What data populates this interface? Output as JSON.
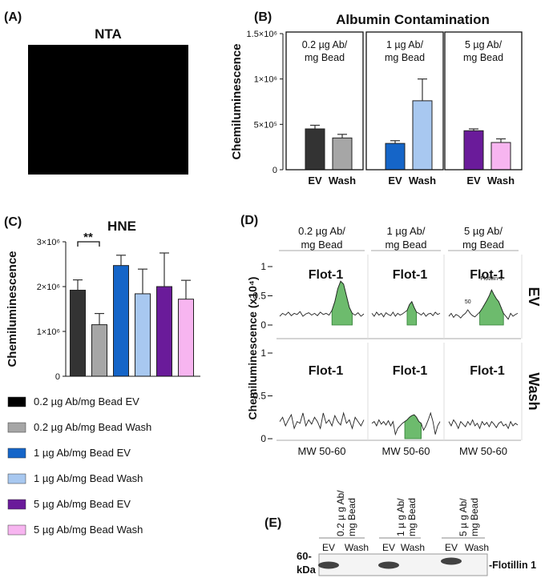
{
  "panel_labels": [
    "(A)",
    "(B)",
    "(C)",
    "(D)",
    "(E)"
  ],
  "nta": {
    "title": "NTA"
  },
  "legend": [
    {
      "name": "0.2 µg Ab/mg Bead EV",
      "color": "#000000"
    },
    {
      "name": "0.2 µg Ab/mg Bead Wash",
      "color": "#a6a6a6"
    },
    {
      "name": "1 µg Ab/mg Bead EV",
      "color": "#1565c8"
    },
    {
      "name": "1 µg Ab/mg Bead Wash",
      "color": "#a8c8f0"
    },
    {
      "name": "5 µg Ab/mg Bead EV",
      "color": "#6a1b9a"
    },
    {
      "name": "5 µg Ab/mg Bead Wash",
      "color": "#f7b5f0"
    }
  ],
  "chart_data": [
    {
      "type": "bar",
      "title": "Albumin Contamination",
      "ylabel": "Chemiluminescence",
      "ylim": [
        0,
        1500000
      ],
      "yticks": [
        0,
        {
          "value": 500000,
          "label": "5×10⁵"
        },
        {
          "value": 1000000,
          "label": "1×10⁶"
        },
        {
          "value": 1500000,
          "label": "1.5×10⁶"
        }
      ],
      "groups": [
        [
          "0.2 µg Ab/",
          "mg Bead"
        ],
        [
          "1 µg Ab/",
          "mg Bead"
        ],
        [
          "5 µg Ab/",
          "mg Bead"
        ]
      ],
      "categories": [
        "EV",
        "Wash",
        "EV",
        "Wash",
        "EV",
        "Wash"
      ],
      "values": [
        450000,
        350000,
        290000,
        760000,
        430000,
        300000
      ],
      "errors": [
        40000,
        40000,
        30000,
        240000,
        20000,
        40000
      ],
      "colors": [
        "#333333",
        "#a6a6a6",
        "#1565c8",
        "#a8c8f0",
        "#6a1b9a",
        "#f7b5f0"
      ]
    },
    {
      "type": "bar",
      "title": "HNE",
      "ylabel": "Chemiluminescence",
      "ylim": [
        0,
        3000000
      ],
      "yticks": [
        0,
        {
          "value": 1000000,
          "label": "1×10⁶"
        },
        {
          "value": 2000000,
          "label": "2×10⁶"
        },
        {
          "value": 3000000,
          "label": "3×10⁶"
        }
      ],
      "categories": [
        null,
        null,
        null,
        null,
        null,
        null
      ],
      "values": [
        1920000,
        1150000,
        2470000,
        1840000,
        2000000,
        1720000
      ],
      "errors": [
        230000,
        250000,
        230000,
        550000,
        750000,
        420000
      ],
      "colors": [
        "#333333",
        "#a6a6a6",
        "#1565c8",
        "#a8c8f0",
        "#6a1b9a",
        "#f7b5f0"
      ],
      "annotation": "**"
    },
    {
      "type": "line",
      "ylabel": "Chemiluminescence (x10⁴)",
      "ylim": [
        0,
        1
      ],
      "yticks": [
        0,
        0.5,
        1
      ],
      "columns": [
        [
          "0.2 µg Ab/",
          "mg Bead"
        ],
        [
          "1 µg Ab/",
          "mg Bead"
        ],
        [
          "5 µg Ab/",
          "mg Bead"
        ]
      ],
      "rows": [
        "EV",
        "Wash"
      ],
      "xlabel": "MW 50-60",
      "peak_label": "Flot-1",
      "color": "#222222",
      "fill_color": "#6dbb6d",
      "panels": [
        [
          {
            "values": [
              0.15,
              0.2,
              0.17,
              0.22,
              0.16,
              0.2,
              0.18,
              0.23,
              0.15,
              0.19,
              0.21,
              0.17,
              0.2,
              0.16,
              0.22,
              0.18,
              0.2,
              0.17,
              0.25,
              0.4,
              0.62,
              0.75,
              0.7,
              0.5,
              0.3,
              0.2,
              0.17,
              0.21,
              0.15,
              0.19
            ],
            "peak_values": [
              null,
              null,
              null,
              null,
              null,
              null,
              null,
              null,
              null,
              null,
              null,
              null,
              null,
              null,
              null,
              null,
              null,
              null,
              0.25,
              0.4,
              0.62,
              0.75,
              0.7,
              0.5,
              0.3,
              0.2,
              null,
              null,
              null,
              null
            ]
          },
          {
            "values": [
              0.2,
              0.15,
              0.22,
              0.17,
              0.2,
              0.14,
              0.21,
              0.18,
              0.16,
              0.22,
              0.15,
              0.2,
              0.17,
              0.19,
              0.22,
              0.25,
              0.35,
              0.4,
              0.3,
              0.22,
              0.2,
              0.17,
              0.21,
              0.15,
              0.19,
              0.2,
              0.16,
              0.22,
              0.18,
              0.2
            ],
            "peak_values": [
              null,
              null,
              null,
              null,
              null,
              null,
              null,
              null,
              null,
              null,
              null,
              null,
              null,
              null,
              null,
              0.25,
              0.35,
              0.4,
              0.3,
              0.22,
              null,
              null,
              null,
              null,
              null,
              null,
              null,
              null,
              null,
              null
            ]
          },
          {
            "values": [
              0.15,
              0.2,
              0.13,
              0.18,
              0.16,
              0.12,
              0.17,
              0.2,
              0.26,
              0.2,
              0.16,
              0.14,
              0.18,
              0.22,
              0.28,
              0.35,
              0.42,
              0.5,
              0.6,
              0.52,
              0.45,
              0.4,
              0.3,
              0.2,
              0.15,
              0.1,
              0.2,
              0.15,
              0.18,
              0.2
            ],
            "peak_values": [
              null,
              null,
              null,
              null,
              null,
              null,
              null,
              null,
              null,
              null,
              null,
              null,
              null,
              0.22,
              0.28,
              0.35,
              0.42,
              0.5,
              0.6,
              0.52,
              0.45,
              0.4,
              0.3,
              0.2,
              null,
              null,
              null,
              null,
              null,
              null
            ],
            "annotations": [
              "Flotillin-1",
              "50"
            ]
          }
        ],
        [
          {
            "values": [
              0.2,
              0.25,
              0.15,
              0.22,
              0.28,
              0.12,
              0.2,
              0.18,
              0.3,
              0.15,
              0.22,
              0.17,
              0.25,
              0.2,
              0.12,
              0.3,
              0.18,
              0.22,
              0.15,
              0.27,
              0.2,
              0.16,
              0.3,
              0.18,
              0.22,
              0.12,
              0.25,
              0.2,
              0.15,
              0.22
            ]
          },
          {
            "values": [
              0.18,
              0.2,
              0.15,
              0.22,
              0.17,
              0.2,
              0.16,
              0.21,
              0.15,
              0.2,
              0.05,
              0.12,
              0.15,
              0.18,
              0.2,
              0.22,
              0.25,
              0.27,
              0.28,
              0.25,
              0.2,
              0.18,
              0.1,
              0.15,
              0.22,
              0.3,
              0.2,
              0.05,
              0.15,
              0.2
            ],
            "peak_values": [
              null,
              null,
              null,
              null,
              null,
              null,
              null,
              null,
              null,
              null,
              null,
              null,
              null,
              null,
              0.2,
              0.22,
              0.25,
              0.27,
              0.28,
              0.25,
              0.2,
              0.18,
              null,
              null,
              null,
              null,
              null,
              null,
              null,
              null
            ]
          },
          {
            "values": [
              0.2,
              0.15,
              0.22,
              0.18,
              0.12,
              0.2,
              0.17,
              0.14,
              0.2,
              0.16,
              0.22,
              0.15,
              0.18,
              0.12,
              0.2,
              0.16,
              0.19,
              0.14,
              0.2,
              0.17,
              0.13,
              0.18,
              0.2,
              0.15,
              0.17,
              0.12,
              0.2,
              0.15,
              0.18,
              0.16
            ]
          }
        ]
      ]
    }
  ],
  "blot": {
    "headers": [
      [
        "0.2 µ g Ab/",
        "mg Bead"
      ],
      [
        "1 µ g Ab/",
        "mg Bead"
      ],
      [
        "5 µ g Ab/",
        "mg Bead"
      ]
    ],
    "lanes": [
      "EV",
      "Wash"
    ],
    "marker": [
      "60-",
      "kDa"
    ],
    "band_label": "-Flotillin 1"
  }
}
